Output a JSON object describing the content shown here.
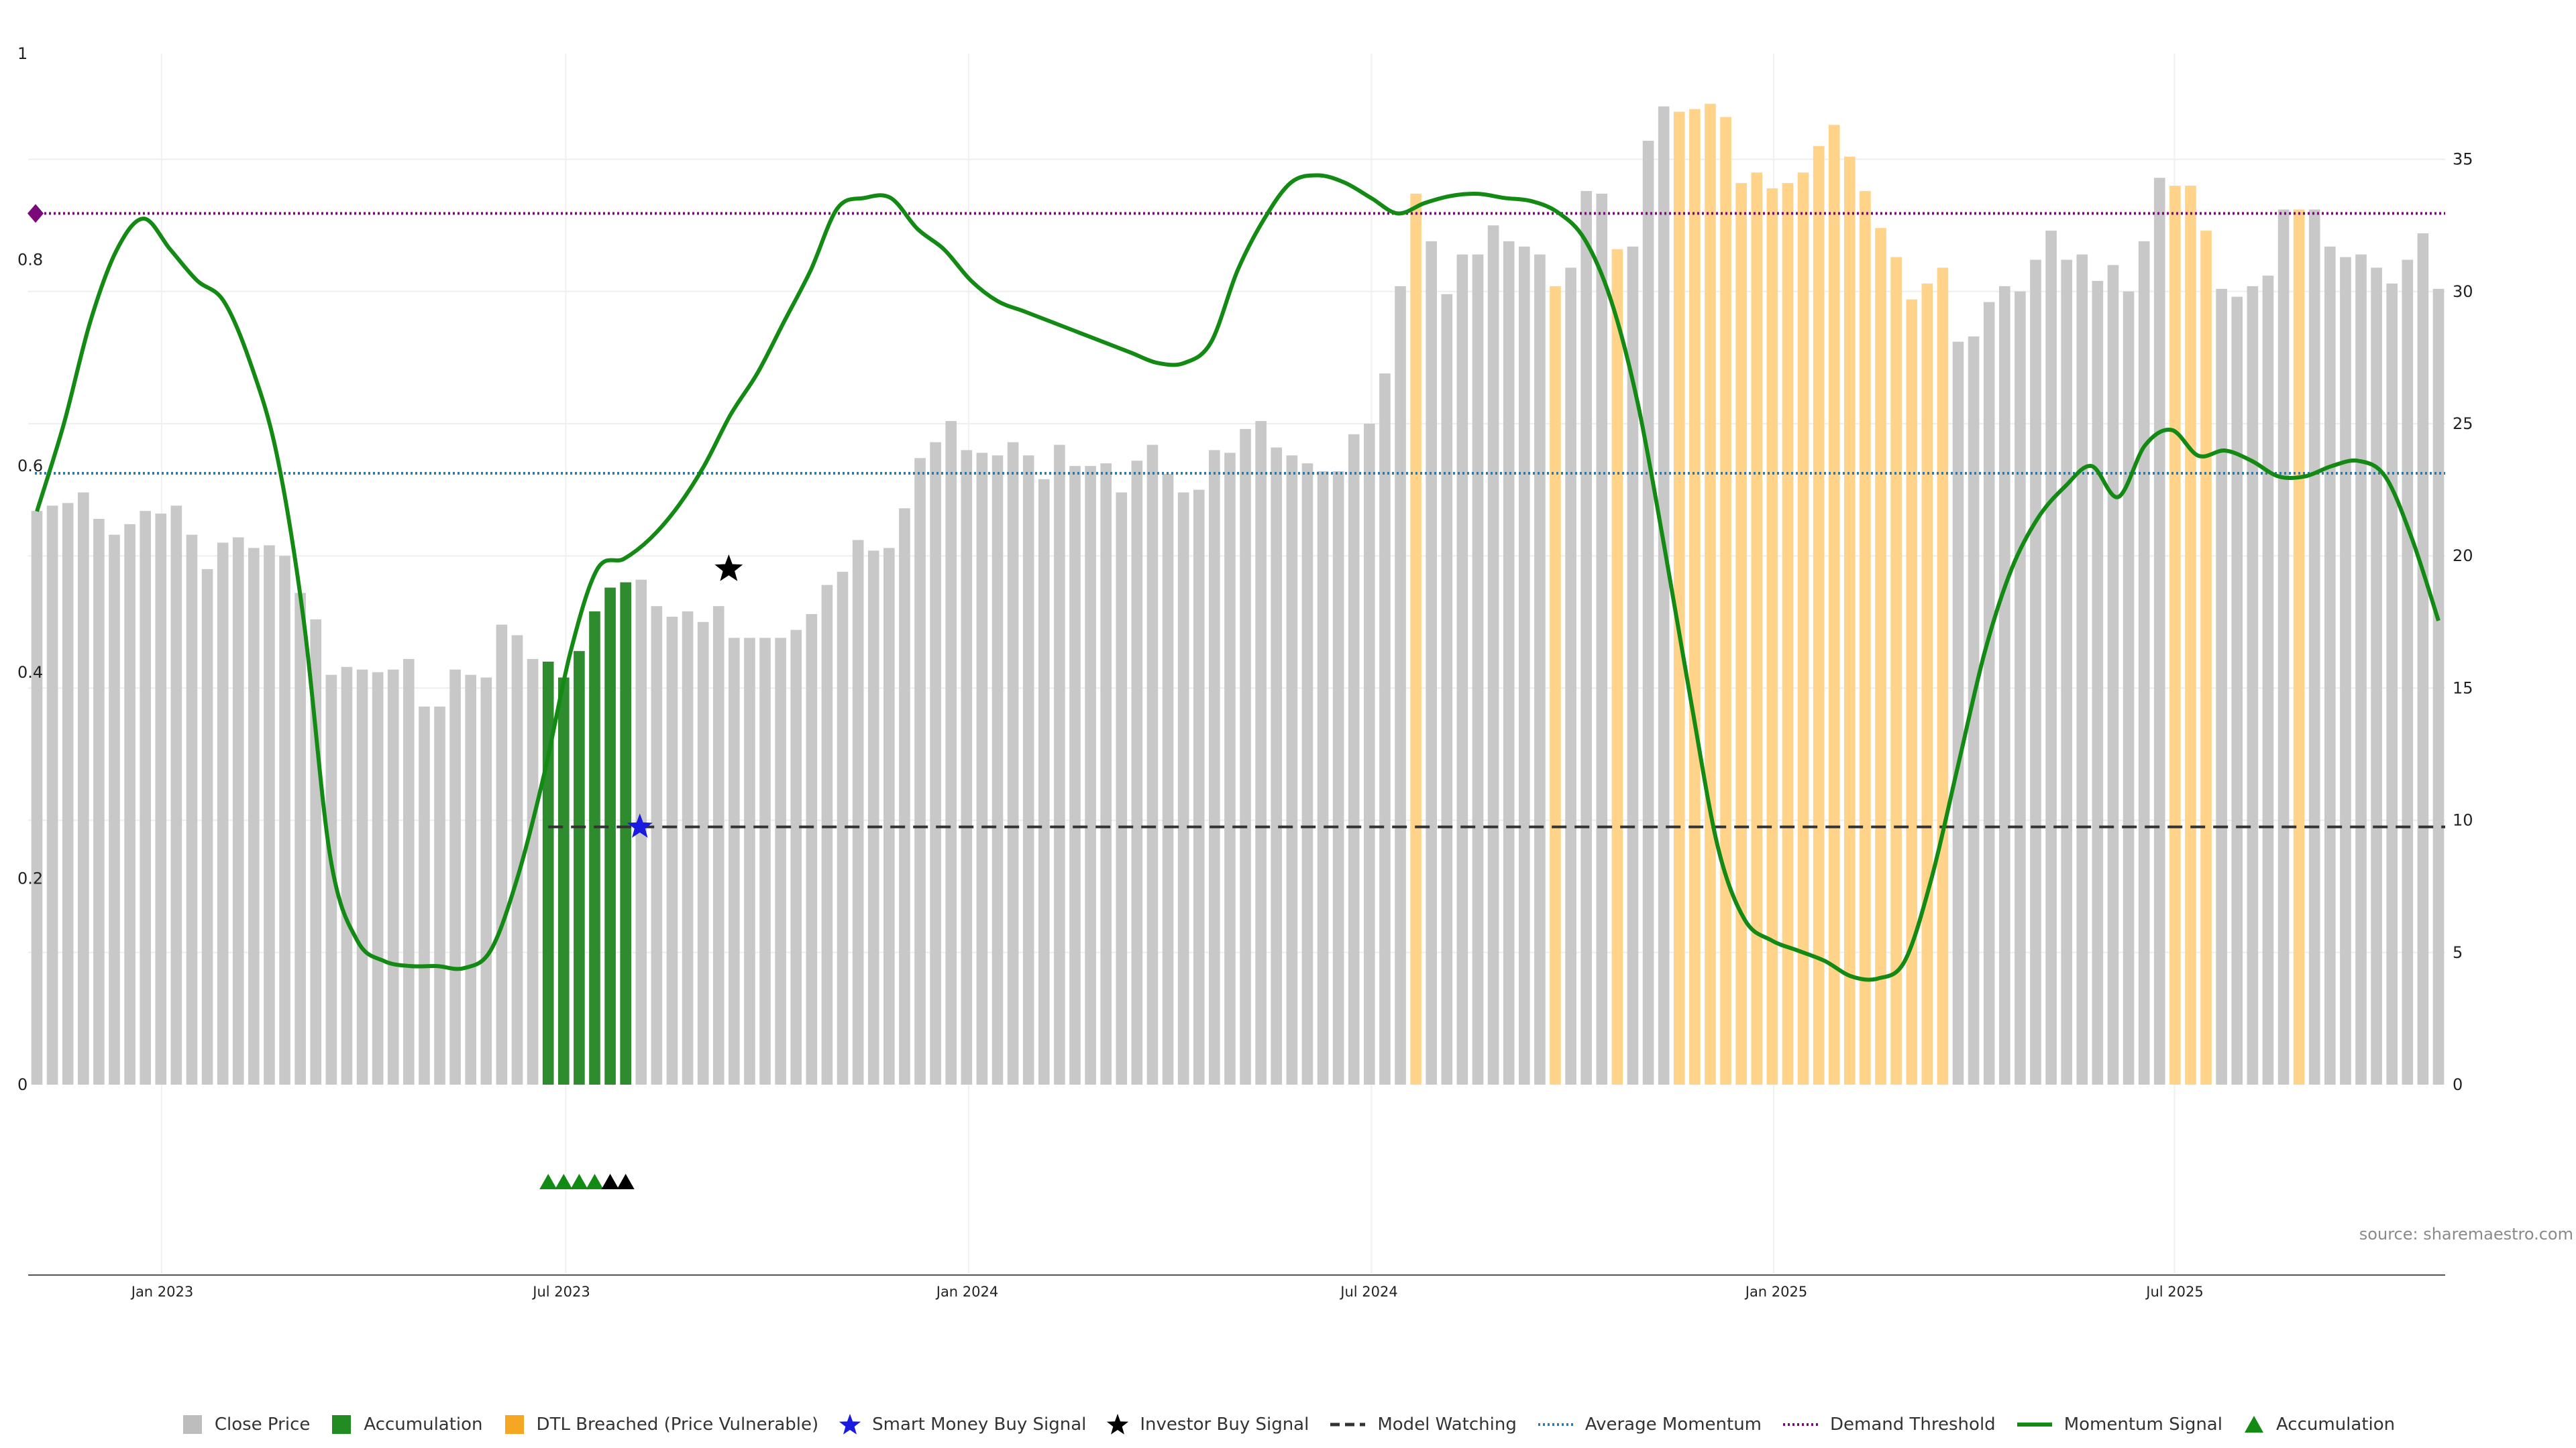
{
  "chart_data": {
    "type": "bar",
    "x_ticks": [
      "Jan 2023",
      "Jul 2023",
      "Jan 2024",
      "Jul 2024",
      "Jan 2025",
      "Jul 2025"
    ],
    "left_axis": {
      "ticks": [
        "0",
        "0.2",
        "0.4",
        "0.6",
        "0.8",
        "1"
      ],
      "range": [
        0,
        1
      ]
    },
    "right_axis": {
      "ticks": [
        "0",
        "5",
        "10",
        "15",
        "20",
        "25",
        "30",
        "35"
      ],
      "range": [
        0,
        39
      ]
    },
    "bars": {
      "series": "Close Price",
      "values": [
        21.7,
        21.9,
        22.0,
        22.4,
        21.4,
        20.8,
        21.2,
        21.7,
        21.6,
        21.9,
        20.8,
        19.5,
        20.5,
        20.7,
        20.3,
        20.4,
        20.0,
        18.6,
        17.6,
        15.5,
        15.8,
        15.7,
        15.6,
        15.7,
        16.1,
        14.3,
        14.3,
        15.7,
        15.5,
        15.4,
        17.4,
        17.0,
        16.1,
        16.0,
        15.4,
        16.4,
        17.9,
        18.8,
        19.0,
        19.1,
        18.1,
        17.7,
        17.9,
        17.5,
        18.1,
        16.9,
        16.9,
        16.9,
        16.9,
        17.2,
        17.8,
        18.9,
        19.4,
        20.6,
        20.2,
        20.3,
        21.8,
        23.7,
        24.3,
        25.1,
        24.0,
        23.9,
        23.8,
        24.3,
        23.8,
        22.9,
        24.2,
        23.4,
        23.4,
        23.5,
        22.4,
        23.6,
        24.2,
        23.1,
        22.4,
        22.5,
        24.0,
        23.9,
        24.8,
        25.1,
        24.1,
        23.8,
        23.5,
        23.2,
        23.2,
        24.6,
        25.0,
        26.9,
        30.2,
        33.7,
        31.9,
        29.9,
        31.4,
        31.4,
        32.5,
        31.9,
        31.7,
        31.4,
        30.2,
        30.9,
        33.8,
        33.7,
        31.6,
        31.7,
        35.7,
        37.0,
        36.8,
        36.9,
        37.1,
        36.6,
        34.1,
        34.5,
        33.9,
        34.1,
        34.5,
        35.5,
        36.3,
        35.1,
        33.8,
        32.4,
        31.3,
        29.7,
        30.3,
        30.9,
        28.1,
        28.3,
        29.6,
        30.2,
        30.0,
        31.2,
        32.3,
        31.2,
        31.4,
        30.4,
        31.0,
        30.0,
        31.9,
        34.3,
        34.0,
        34.0,
        32.3,
        30.1,
        29.8,
        30.2,
        30.6,
        33.1,
        33.1,
        33.1,
        31.7,
        31.3,
        31.4,
        30.9,
        30.3,
        31.2,
        32.2,
        30.1
      ],
      "accumulation_indices": [
        33,
        34,
        35,
        36,
        37,
        38
      ],
      "dtl_breached_indices": [
        89,
        98,
        102,
        106,
        107,
        108,
        109,
        110,
        111,
        112,
        113,
        114,
        115,
        116,
        117,
        118,
        119,
        120,
        121,
        122,
        123,
        138,
        139,
        140,
        146
      ]
    },
    "momentum_signal": [
      [
        0,
        0.556
      ],
      [
        2,
        0.64
      ],
      [
        4,
        0.74
      ],
      [
        6,
        0.81
      ],
      [
        8,
        0.84
      ],
      [
        10,
        0.81
      ],
      [
        12,
        0.78
      ],
      [
        14,
        0.76
      ],
      [
        16,
        0.7
      ],
      [
        18,
        0.61
      ],
      [
        20,
        0.45
      ],
      [
        22,
        0.22
      ],
      [
        24,
        0.14
      ],
      [
        26,
        0.12
      ],
      [
        28,
        0.115
      ],
      [
        30,
        0.115
      ],
      [
        32,
        0.113
      ],
      [
        34,
        0.13
      ],
      [
        36,
        0.2
      ],
      [
        38,
        0.3
      ],
      [
        40,
        0.42
      ],
      [
        42,
        0.5
      ],
      [
        44,
        0.51
      ],
      [
        46,
        0.53
      ],
      [
        48,
        0.56
      ],
      [
        50,
        0.6
      ],
      [
        52,
        0.65
      ],
      [
        54,
        0.69
      ],
      [
        56,
        0.74
      ],
      [
        58,
        0.79
      ],
      [
        60,
        0.85
      ],
      [
        62,
        0.86
      ],
      [
        64,
        0.86
      ],
      [
        66,
        0.83
      ],
      [
        68,
        0.81
      ],
      [
        70,
        0.78
      ],
      [
        72,
        0.76
      ],
      [
        74,
        0.75
      ],
      [
        76,
        0.74
      ],
      [
        78,
        0.73
      ],
      [
        80,
        0.72
      ],
      [
        82,
        0.71
      ],
      [
        84,
        0.7
      ],
      [
        86,
        0.7
      ],
      [
        88,
        0.72
      ],
      [
        90,
        0.79
      ],
      [
        92,
        0.84
      ],
      [
        94,
        0.875
      ],
      [
        96,
        0.882
      ],
      [
        98,
        0.875
      ],
      [
        100,
        0.86
      ],
      [
        102,
        0.845
      ],
      [
        104,
        0.855
      ],
      [
        106,
        0.862
      ],
      [
        108,
        0.864
      ],
      [
        110,
        0.86
      ],
      [
        112,
        0.857
      ],
      [
        114,
        0.846
      ],
      [
        116,
        0.82
      ],
      [
        118,
        0.76
      ],
      [
        120,
        0.66
      ],
      [
        122,
        0.52
      ],
      [
        124,
        0.37
      ],
      [
        126,
        0.23
      ],
      [
        128,
        0.16
      ],
      [
        130,
        0.14
      ],
      [
        132,
        0.13
      ],
      [
        134,
        0.12
      ],
      [
        136,
        0.105
      ],
      [
        138,
        0.103
      ],
      [
        140,
        0.12
      ],
      [
        142,
        0.2
      ],
      [
        144,
        0.31
      ],
      [
        146,
        0.42
      ],
      [
        148,
        0.5
      ],
      [
        150,
        0.55
      ],
      [
        152,
        0.58
      ],
      [
        154,
        0.6
      ],
      [
        156,
        0.57
      ],
      [
        158,
        0.62
      ],
      [
        160,
        0.635
      ],
      [
        162,
        0.61
      ],
      [
        164,
        0.615
      ],
      [
        166,
        0.605
      ],
      [
        168,
        0.59
      ],
      [
        170,
        0.59
      ],
      [
        172,
        0.6
      ],
      [
        174,
        0.605
      ],
      [
        176,
        0.59
      ],
      [
        178,
        0.53
      ],
      [
        180,
        0.45
      ]
    ],
    "average_momentum": 0.593,
    "demand_threshold": 0.845,
    "model_watching": {
      "level": 0.25,
      "start_index": 33
    },
    "smart_money_buy_signal": {
      "index": 39,
      "value": 0.25
    },
    "investor_buy_signal": {
      "index": 45,
      "value": 0.5
    },
    "accumulation_markers": [
      {
        "index": 33,
        "color": "#138a13"
      },
      {
        "index": 34,
        "color": "#138a13"
      },
      {
        "index": 35,
        "color": "#138a13"
      },
      {
        "index": 36,
        "color": "#138a13"
      },
      {
        "index": 37,
        "color": "#000000"
      },
      {
        "index": 38,
        "color": "#000000"
      }
    ],
    "colors": {
      "close_price": "#c8c8c8",
      "accumulation": "#2e8b2e",
      "dtl_breached": "#ffd48a",
      "momentum": "#138a13",
      "average_momentum": "#2f7aa8",
      "demand_threshold": "#7a0a7a",
      "model_watching": "#333333",
      "smart_money": "#1a1ae0",
      "investor": "#000000"
    }
  },
  "source_label": "source: sharemaestro.com",
  "legend": [
    {
      "label": "Close Price",
      "shape": "square",
      "color": "#bdbdbd"
    },
    {
      "label": "Accumulation",
      "shape": "square",
      "color": "#228b22"
    },
    {
      "label": "DTL Breached (Price Vulnerable)",
      "shape": "square",
      "color": "#f5a623"
    },
    {
      "label": "Smart Money Buy Signal",
      "shape": "star",
      "color": "#1a1ae0"
    },
    {
      "label": "Investor Buy Signal",
      "shape": "star",
      "color": "#000000"
    },
    {
      "label": "Model Watching",
      "shape": "dash",
      "color": "#333333"
    },
    {
      "label": "Average Momentum",
      "shape": "dot",
      "color": "#2f7aa8"
    },
    {
      "label": "Demand Threshold",
      "shape": "dot",
      "color": "#7a0a7a"
    },
    {
      "label": "Momentum Signal",
      "shape": "line",
      "color": "#138a13"
    },
    {
      "label": "Accumulation",
      "shape": "triangle",
      "color": "#138a13"
    }
  ]
}
